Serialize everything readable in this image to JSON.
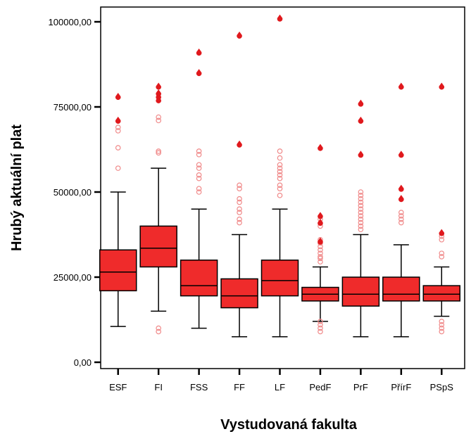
{
  "chart_data": {
    "type": "boxplot",
    "xlabel": "Vystudovaná fakulta",
    "ylabel": "Hrubý aktuální plat",
    "ylim": [
      -5000,
      105000
    ],
    "yticks": [
      0,
      25000,
      50000,
      75000,
      100000
    ],
    "ytick_labels": [
      "0,00",
      "25000,00",
      "50000,00",
      "75000,00",
      "100000,00"
    ],
    "grid": false,
    "colors": {
      "box_fill": "#ef2b2b",
      "extreme": "#e0191d",
      "outlier": "#f08a8a",
      "line": "#000000"
    },
    "categories": [
      "ESF",
      "FI",
      "FSS",
      "FF",
      "LF",
      "PedF",
      "PrF",
      "PřírF",
      "PSpS"
    ],
    "boxes": [
      {
        "category": "ESF",
        "whisker_low": 10500,
        "q1": 21000,
        "median": 26500,
        "q3": 33000,
        "whisker_high": 50000,
        "outliers": [
          57000,
          63000,
          68000,
          69000
        ],
        "extremes": [
          71000,
          78000
        ]
      },
      {
        "category": "FI",
        "whisker_low": 15000,
        "q1": 28000,
        "median": 33500,
        "q3": 40000,
        "whisker_high": 57000,
        "outliers": [
          9000,
          10000,
          61500,
          62000,
          71000,
          72000
        ],
        "extremes": [
          77000,
          78000,
          79000,
          81000
        ]
      },
      {
        "category": "FSS",
        "whisker_low": 10000,
        "q1": 19500,
        "median": 22500,
        "q3": 30000,
        "whisker_high": 45000,
        "outliers": [
          50000,
          51000,
          54000,
          55000,
          57000,
          58000,
          61000,
          62000
        ],
        "extremes": [
          85000,
          91000
        ]
      },
      {
        "category": "FF",
        "whisker_low": 7500,
        "q1": 16000,
        "median": 19500,
        "q3": 24500,
        "whisker_high": 37500,
        "outliers": [
          41000,
          42000,
          44000,
          45000,
          47000,
          48000,
          51000,
          52000
        ],
        "extremes": [
          64000,
          96000
        ]
      },
      {
        "category": "LF",
        "whisker_low": 7500,
        "q1": 19500,
        "median": 24000,
        "q3": 30000,
        "whisker_high": 45000,
        "outliers": [
          49000,
          51000,
          52000,
          54000,
          55000,
          56000,
          57000,
          58000,
          60000,
          62000
        ],
        "extremes": [
          101000
        ]
      },
      {
        "category": "PedF",
        "whisker_low": 12000,
        "q1": 18000,
        "median": 20000,
        "q3": 22000,
        "whisker_high": 28000,
        "outliers": [
          9000,
          10000,
          11000,
          12000,
          29500,
          30500,
          31000,
          32000,
          33000,
          34000,
          35000,
          36000,
          40000,
          42000
        ],
        "extremes": [
          35500,
          41000,
          43000,
          63000
        ]
      },
      {
        "category": "PrF",
        "whisker_low": 7500,
        "q1": 16500,
        "median": 20000,
        "q3": 25000,
        "whisker_high": 37500,
        "outliers": [
          39000,
          40000,
          41000,
          42000,
          43000,
          44000,
          45000,
          46000,
          47000,
          48000,
          49000,
          50000
        ],
        "extremes": [
          61000,
          71000,
          76000
        ]
      },
      {
        "category": "PřírF",
        "whisker_low": 7500,
        "q1": 18000,
        "median": 20000,
        "q3": 25000,
        "whisker_high": 34500,
        "outliers": [
          41000,
          42000,
          43000,
          44000
        ],
        "extremes": [
          48000,
          51000,
          61000,
          81000
        ]
      },
      {
        "category": "PSpS",
        "whisker_low": 13500,
        "q1": 18000,
        "median": 20000,
        "q3": 22500,
        "whisker_high": 28000,
        "outliers": [
          9000,
          10000,
          11000,
          12000,
          31000,
          32000,
          36000,
          37000
        ],
        "extremes": [
          38000,
          81000
        ]
      }
    ]
  }
}
